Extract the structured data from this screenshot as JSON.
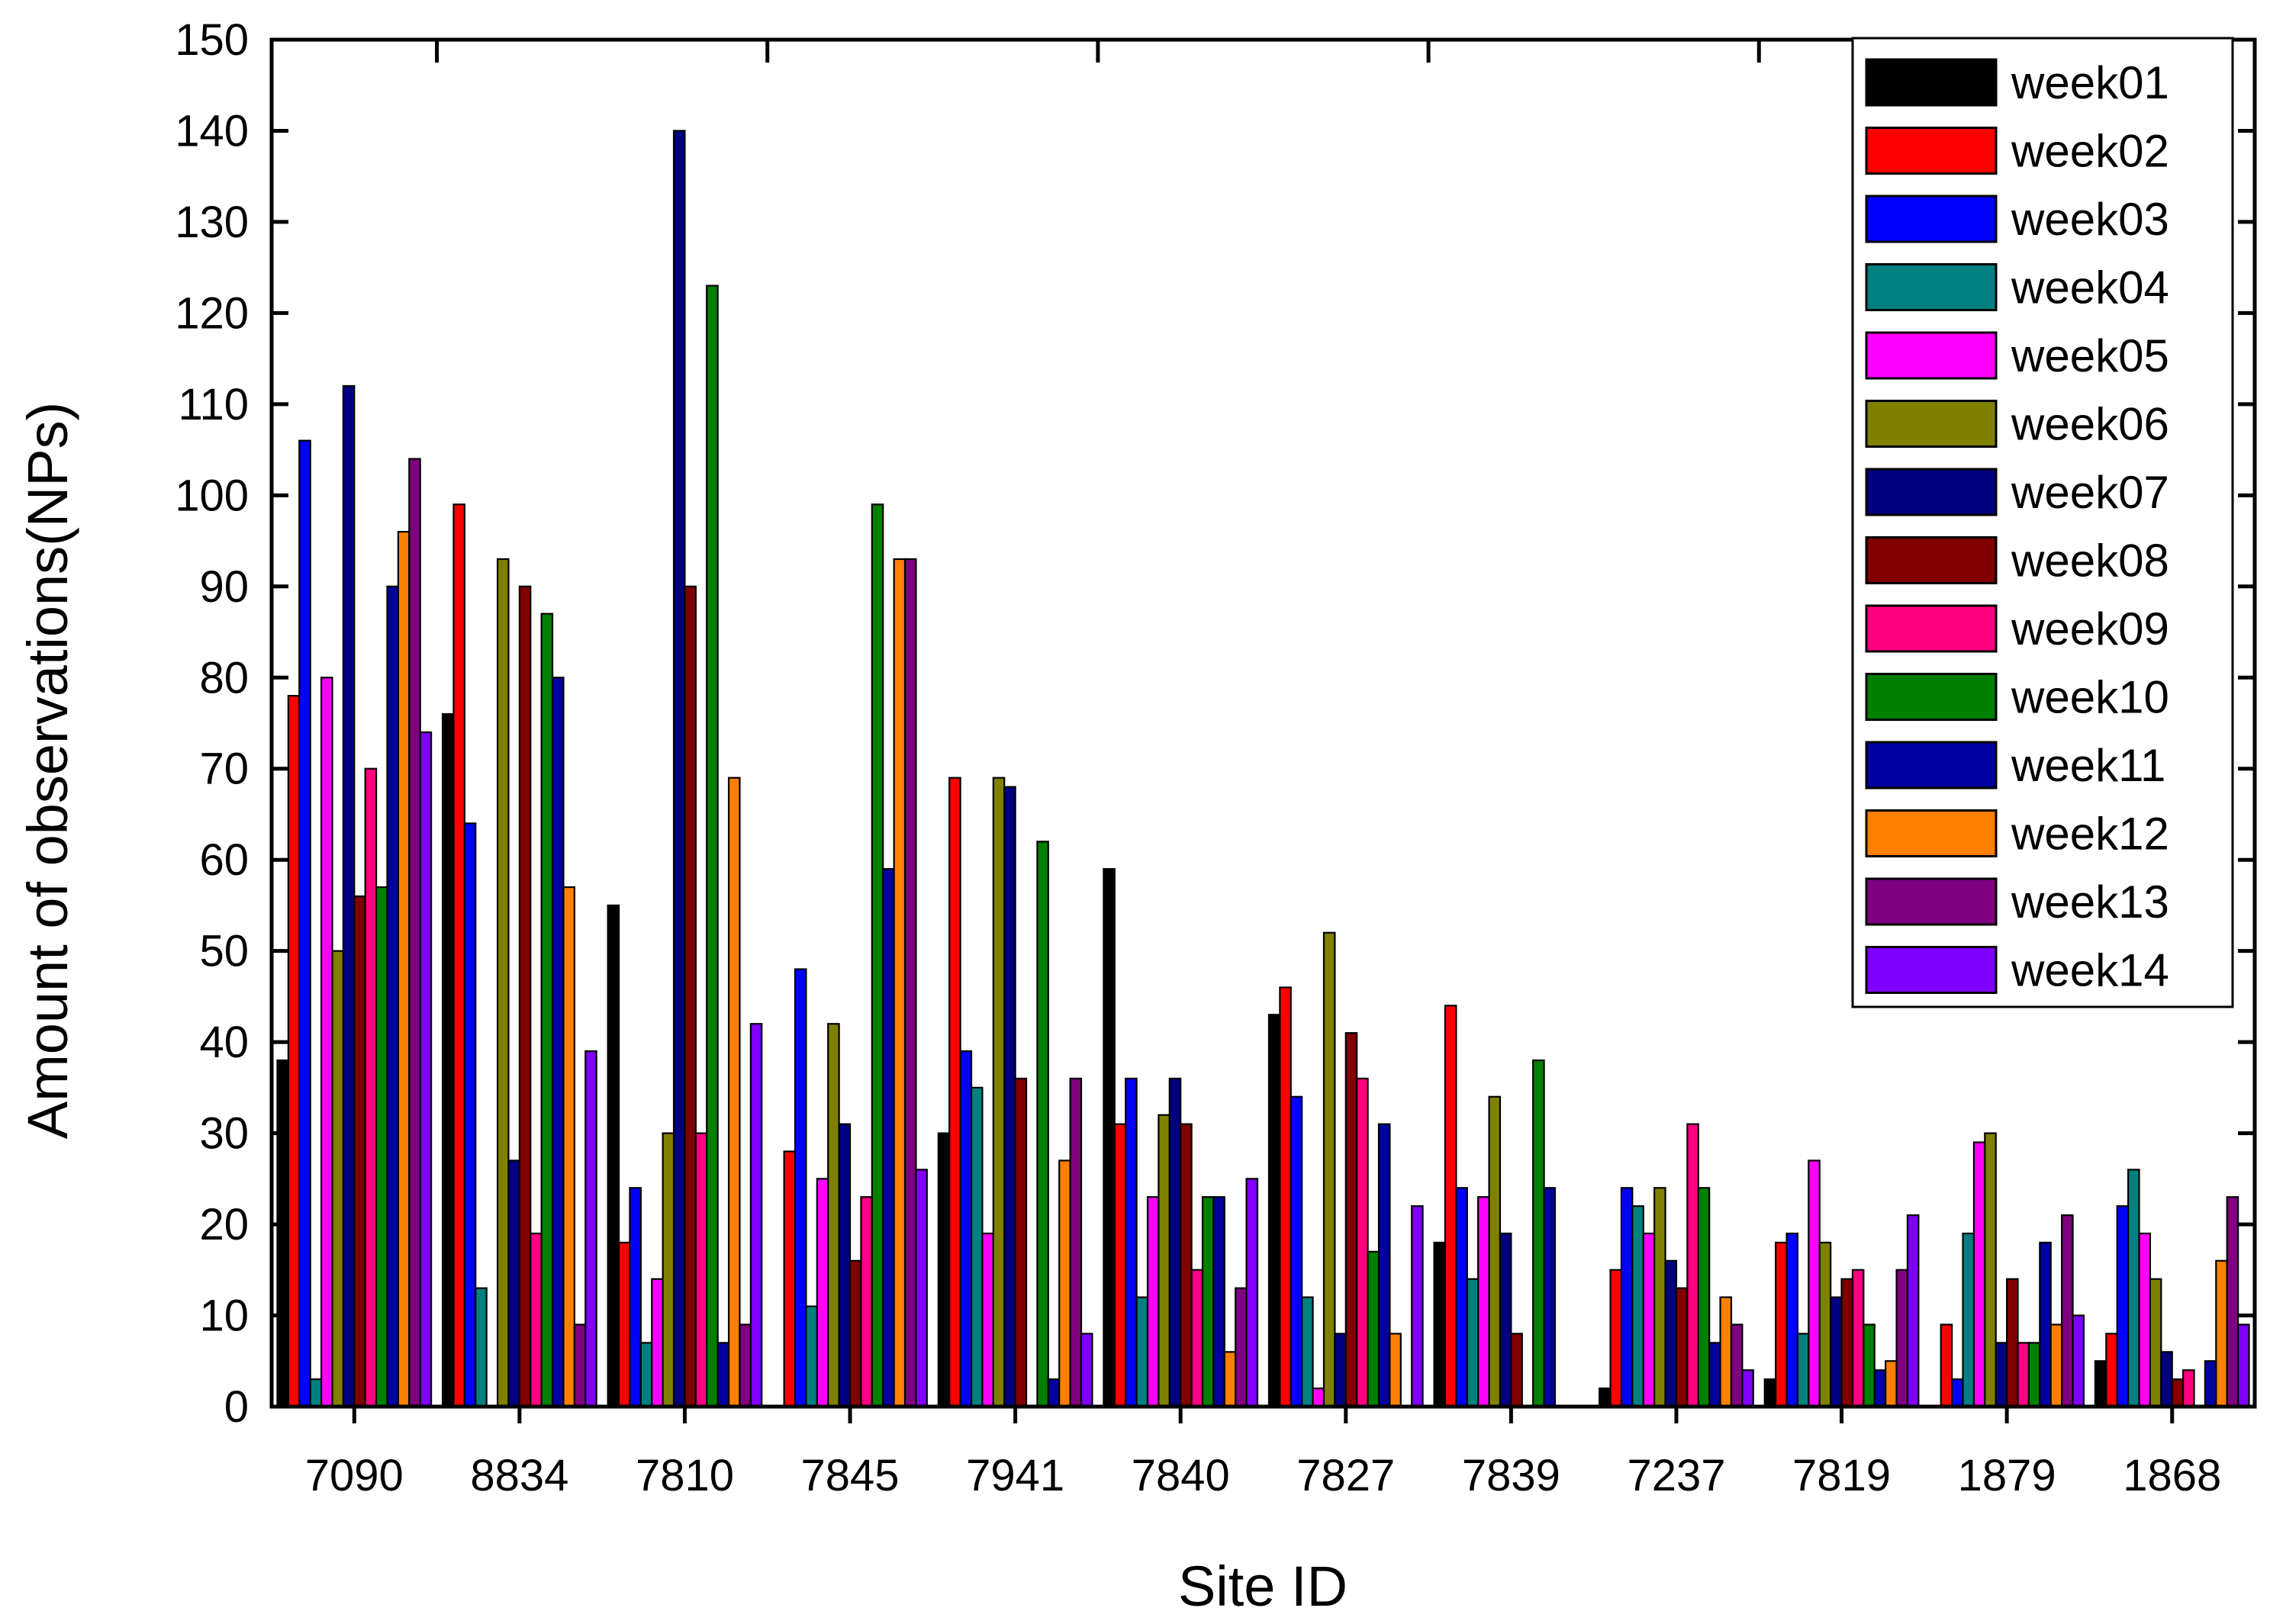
{
  "chart_data": {
    "type": "bar",
    "title": "",
    "xlabel": "Site ID",
    "ylabel": "Amount of observations(NPs)",
    "ylim": [
      0,
      150
    ],
    "yticks": [
      0,
      10,
      20,
      30,
      40,
      50,
      60,
      70,
      80,
      90,
      100,
      110,
      120,
      130,
      140,
      150
    ],
    "legend_position": "top-right",
    "categories": [
      "7090",
      "8834",
      "7810",
      "7845",
      "7941",
      "7840",
      "7827",
      "7839",
      "7237",
      "7819",
      "1879",
      "1868"
    ],
    "series": [
      {
        "name": "week01",
        "color": "#000000",
        "values": [
          38,
          76,
          55,
          0,
          30,
          59,
          43,
          18,
          2,
          3,
          0,
          5
        ]
      },
      {
        "name": "week02",
        "color": "#ff0000",
        "values": [
          78,
          99,
          18,
          28,
          69,
          31,
          46,
          44,
          15,
          18,
          9,
          8
        ]
      },
      {
        "name": "week03",
        "color": "#0000ff",
        "values": [
          106,
          64,
          24,
          48,
          39,
          36,
          34,
          24,
          24,
          19,
          3,
          22
        ]
      },
      {
        "name": "week04",
        "color": "#008080",
        "values": [
          3,
          13,
          7,
          11,
          35,
          12,
          12,
          14,
          22,
          8,
          19,
          26
        ]
      },
      {
        "name": "week05",
        "color": "#ff00ff",
        "values": [
          80,
          0,
          14,
          25,
          19,
          23,
          2,
          23,
          19,
          27,
          29,
          19
        ]
      },
      {
        "name": "week06",
        "color": "#808000",
        "values": [
          50,
          93,
          30,
          42,
          69,
          32,
          52,
          34,
          24,
          18,
          30,
          14
        ]
      },
      {
        "name": "week07",
        "color": "#000080",
        "values": [
          112,
          27,
          140,
          31,
          68,
          36,
          8,
          19,
          16,
          12,
          7,
          6
        ]
      },
      {
        "name": "week08",
        "color": "#800000",
        "values": [
          56,
          90,
          90,
          16,
          36,
          31,
          41,
          8,
          13,
          14,
          14,
          3
        ]
      },
      {
        "name": "week09",
        "color": "#ff0080",
        "values": [
          70,
          19,
          30,
          23,
          0,
          15,
          36,
          0,
          31,
          15,
          7,
          4
        ]
      },
      {
        "name": "week10",
        "color": "#008000",
        "values": [
          57,
          87,
          123,
          99,
          62,
          23,
          17,
          38,
          24,
          9,
          7,
          0
        ]
      },
      {
        "name": "week11",
        "color": "#0000a0",
        "values": [
          90,
          80,
          7,
          59,
          3,
          23,
          31,
          24,
          7,
          4,
          18,
          5
        ]
      },
      {
        "name": "week12",
        "color": "#ff8000",
        "values": [
          96,
          57,
          69,
          93,
          27,
          6,
          8,
          0,
          12,
          5,
          9,
          16
        ]
      },
      {
        "name": "week13",
        "color": "#800080",
        "values": [
          104,
          9,
          9,
          93,
          36,
          13,
          0,
          0,
          9,
          15,
          21,
          23
        ]
      },
      {
        "name": "week14",
        "color": "#8000ff",
        "values": [
          74,
          39,
          42,
          26,
          8,
          25,
          22,
          0,
          4,
          21,
          10,
          9
        ]
      }
    ]
  }
}
